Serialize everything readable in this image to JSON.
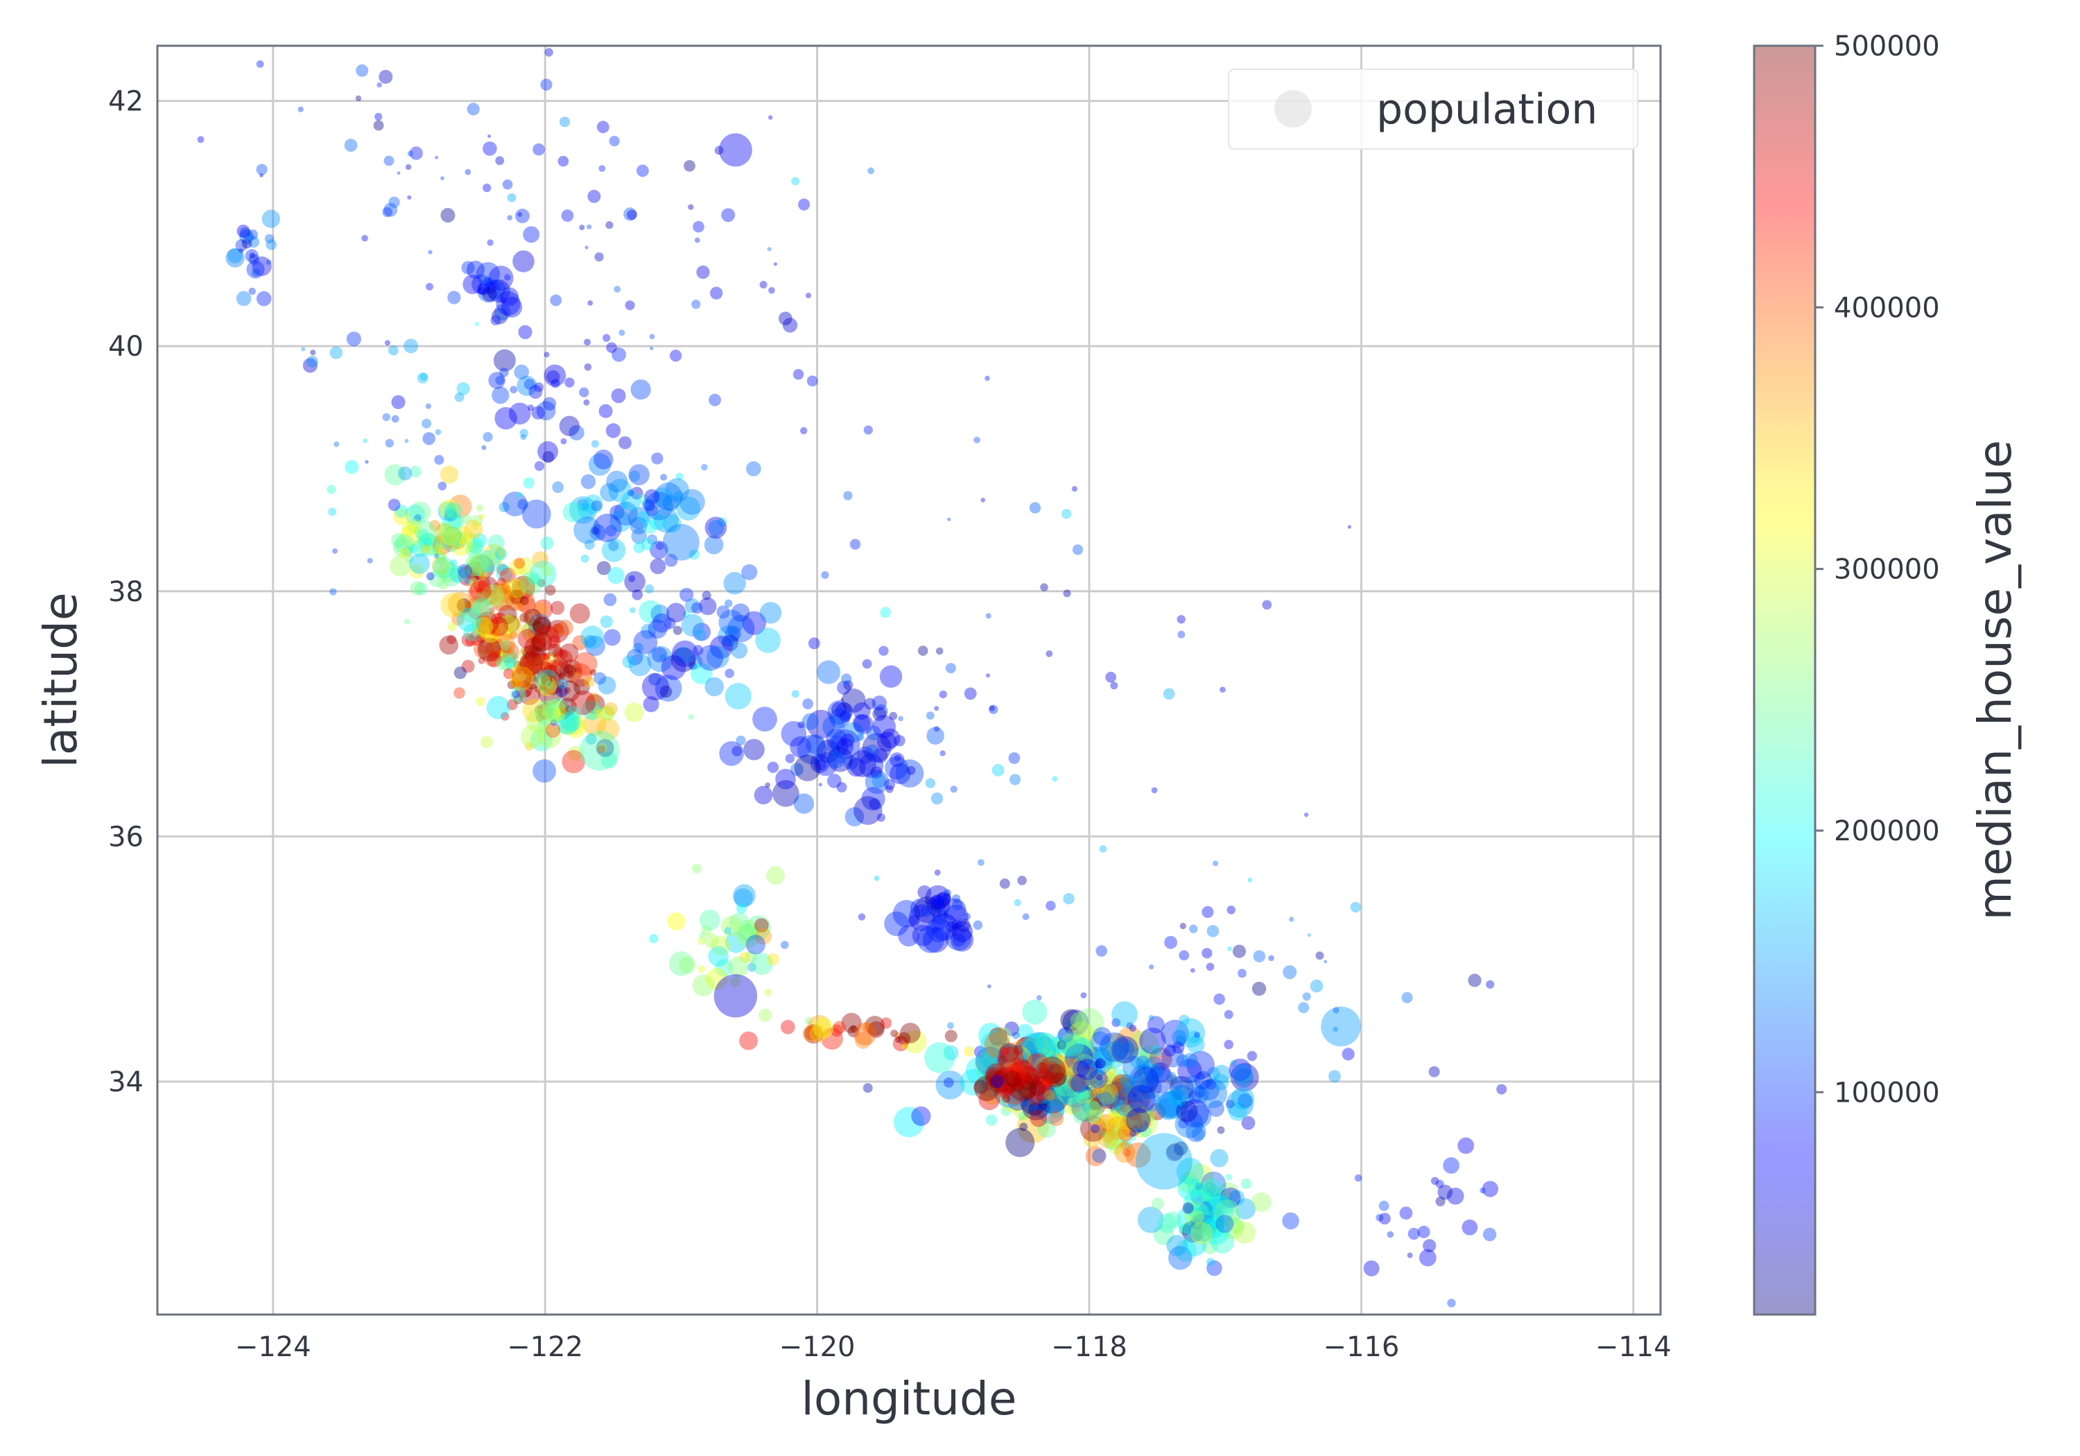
{
  "chart_data": {
    "type": "scatter",
    "xlabel": "longitude",
    "ylabel": "latitude",
    "colorbar_label": "median_house_value",
    "legend": [
      "population"
    ],
    "legend_position": "upper right",
    "grid": true,
    "xlim": [
      -124.85,
      -113.8
    ],
    "ylim": [
      32.1,
      42.45
    ],
    "xticks": [
      -124,
      -122,
      -120,
      -118,
      -116,
      -114
    ],
    "xtick_labels": [
      "−124",
      "−122",
      "−120",
      "−118",
      "−116",
      "−114"
    ],
    "yticks": [
      34,
      36,
      38,
      40,
      42
    ],
    "ytick_labels": [
      "34",
      "36",
      "38",
      "40",
      "42"
    ],
    "colorbar_range": [
      15000,
      500001
    ],
    "colorbar_ticks": [
      100000,
      200000,
      300000,
      400000,
      500000
    ],
    "colormap": "jet",
    "marker_alpha": 0.4,
    "marker_size": "population",
    "marker_color": "median_house_value",
    "colors": {
      "axes_edge": "#6b7280",
      "grid": "#cccccc",
      "text": "#333842"
    },
    "clusters": [
      {
        "lon": -122.3,
        "lat": 37.8,
        "sx": 0.2,
        "sy": 0.3,
        "n": 120,
        "value": 380000,
        "vsd": 90000,
        "size": 1.0
      },
      {
        "lon": -122.0,
        "lat": 37.4,
        "sx": 0.15,
        "sy": 0.2,
        "n": 80,
        "value": 470000,
        "vsd": 40000,
        "size": 1.0
      },
      {
        "lon": -121.8,
        "lat": 37.0,
        "sx": 0.25,
        "sy": 0.2,
        "n": 60,
        "value": 280000,
        "vsd": 80000,
        "size": 1.0
      },
      {
        "lon": -122.6,
        "lat": 38.2,
        "sx": 0.25,
        "sy": 0.25,
        "n": 60,
        "value": 260000,
        "vsd": 60000,
        "size": 1.0
      },
      {
        "lon": -122.8,
        "lat": 38.5,
        "sx": 0.2,
        "sy": 0.15,
        "n": 40,
        "value": 250000,
        "vsd": 60000,
        "size": 0.9
      },
      {
        "lon": -121.4,
        "lat": 38.6,
        "sx": 0.3,
        "sy": 0.25,
        "n": 80,
        "value": 130000,
        "vsd": 40000,
        "size": 1.2
      },
      {
        "lon": -121.0,
        "lat": 37.6,
        "sx": 0.35,
        "sy": 0.25,
        "n": 70,
        "value": 110000,
        "vsd": 40000,
        "size": 1.1
      },
      {
        "lon": -119.8,
        "lat": 36.75,
        "sx": 0.3,
        "sy": 0.25,
        "n": 80,
        "value": 85000,
        "vsd": 25000,
        "size": 1.2
      },
      {
        "lon": -119.1,
        "lat": 35.35,
        "sx": 0.15,
        "sy": 0.12,
        "n": 40,
        "value": 80000,
        "vsd": 20000,
        "size": 1.1
      },
      {
        "lon": -121.9,
        "lat": 39.6,
        "sx": 0.3,
        "sy": 0.35,
        "n": 40,
        "value": 90000,
        "vsd": 30000,
        "size": 0.9
      },
      {
        "lon": -122.35,
        "lat": 40.55,
        "sx": 0.1,
        "sy": 0.15,
        "n": 25,
        "value": 80000,
        "vsd": 20000,
        "size": 1.1
      },
      {
        "lon": -124.15,
        "lat": 40.8,
        "sx": 0.08,
        "sy": 0.2,
        "n": 25,
        "value": 100000,
        "vsd": 30000,
        "size": 0.8
      },
      {
        "lon": -118.2,
        "lat": 34.05,
        "sx": 0.35,
        "sy": 0.18,
        "n": 220,
        "value": 230000,
        "vsd": 120000,
        "size": 1.3
      },
      {
        "lon": -118.45,
        "lat": 34.0,
        "sx": 0.15,
        "sy": 0.1,
        "n": 60,
        "value": 470000,
        "vsd": 50000,
        "size": 1.1
      },
      {
        "lon": -117.8,
        "lat": 33.7,
        "sx": 0.15,
        "sy": 0.15,
        "n": 60,
        "value": 330000,
        "vsd": 100000,
        "size": 1.1
      },
      {
        "lon": -117.4,
        "lat": 34.0,
        "sx": 0.3,
        "sy": 0.2,
        "n": 80,
        "value": 120000,
        "vsd": 40000,
        "size": 1.2
      },
      {
        "lon": -117.15,
        "lat": 32.9,
        "sx": 0.15,
        "sy": 0.2,
        "n": 80,
        "value": 200000,
        "vsd": 70000,
        "size": 1.2
      },
      {
        "lon": -119.7,
        "lat": 34.42,
        "sx": 0.3,
        "sy": 0.05,
        "n": 30,
        "value": 420000,
        "vsd": 80000,
        "size": 1.0
      },
      {
        "lon": -120.6,
        "lat": 35.1,
        "sx": 0.2,
        "sy": 0.3,
        "n": 40,
        "value": 260000,
        "vsd": 70000,
        "size": 1.0
      },
      {
        "lon": -119.0,
        "lat": 37.0,
        "sx": 1.0,
        "sy": 1.2,
        "n": 80,
        "value": 90000,
        "vsd": 40000,
        "size": 0.5
      },
      {
        "lon": -117.0,
        "lat": 34.6,
        "sx": 0.8,
        "sy": 0.5,
        "n": 60,
        "value": 100000,
        "vsd": 40000,
        "size": 0.6
      },
      {
        "lon": -115.5,
        "lat": 33.0,
        "sx": 0.4,
        "sy": 0.3,
        "n": 25,
        "value": 80000,
        "vsd": 20000,
        "size": 0.7
      },
      {
        "lon": -123.0,
        "lat": 39.5,
        "sx": 0.4,
        "sy": 0.6,
        "n": 40,
        "value": 130000,
        "vsd": 50000,
        "size": 0.6
      },
      {
        "lon": -122.5,
        "lat": 41.5,
        "sx": 1.0,
        "sy": 0.4,
        "n": 50,
        "value": 80000,
        "vsd": 30000,
        "size": 0.6
      },
      {
        "lon": -121.0,
        "lat": 40.5,
        "sx": 0.8,
        "sy": 0.6,
        "n": 40,
        "value": 85000,
        "vsd": 30000,
        "size": 0.6
      }
    ],
    "highlight_points": [
      {
        "lon": -120.6,
        "lat": 41.6,
        "value": 70000,
        "size": 2.0
      },
      {
        "lon": -117.45,
        "lat": 33.35,
        "value": 160000,
        "size": 3.4
      },
      {
        "lon": -116.15,
        "lat": 34.45,
        "value": 150000,
        "size": 2.4
      },
      {
        "lon": -120.6,
        "lat": 34.7,
        "value": 60000,
        "size": 2.6
      },
      {
        "lon": -121.6,
        "lat": 36.7,
        "value": 230000,
        "size": 2.4
      },
      {
        "lon": -121.0,
        "lat": 38.4,
        "value": 130000,
        "size": 2.2
      }
    ]
  }
}
